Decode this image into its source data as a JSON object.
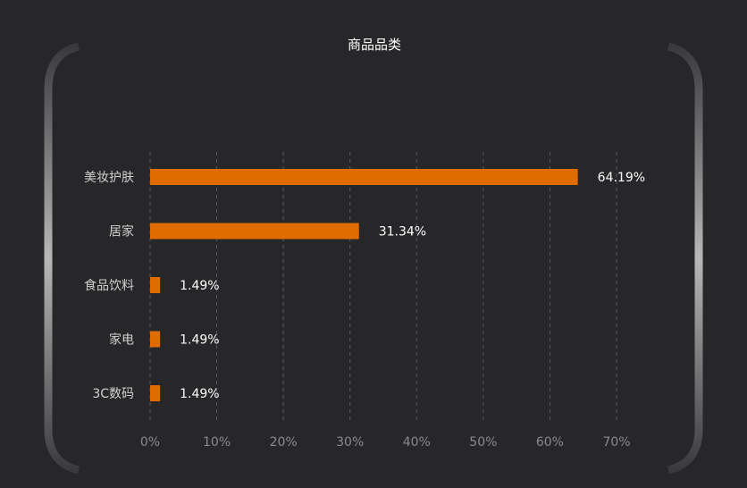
{
  "chart_data": {
    "type": "bar",
    "orientation": "horizontal",
    "title": "商品品类",
    "categories": [
      "美妆护肤",
      "居家",
      "食品饮料",
      "家电",
      "3C数码"
    ],
    "values": [
      64.19,
      31.34,
      1.49,
      1.49,
      1.49
    ],
    "data_labels": [
      "64.19%",
      "31.34%",
      "1.49%",
      "1.49%",
      "1.49%"
    ],
    "xlim": [
      0,
      70
    ],
    "xticks": [
      "0%",
      "10%",
      "20%",
      "30%",
      "40%",
      "50%",
      "60%",
      "70%"
    ],
    "grid": true,
    "bar_color": "#e06c00",
    "xlabel": "",
    "ylabel": ""
  }
}
